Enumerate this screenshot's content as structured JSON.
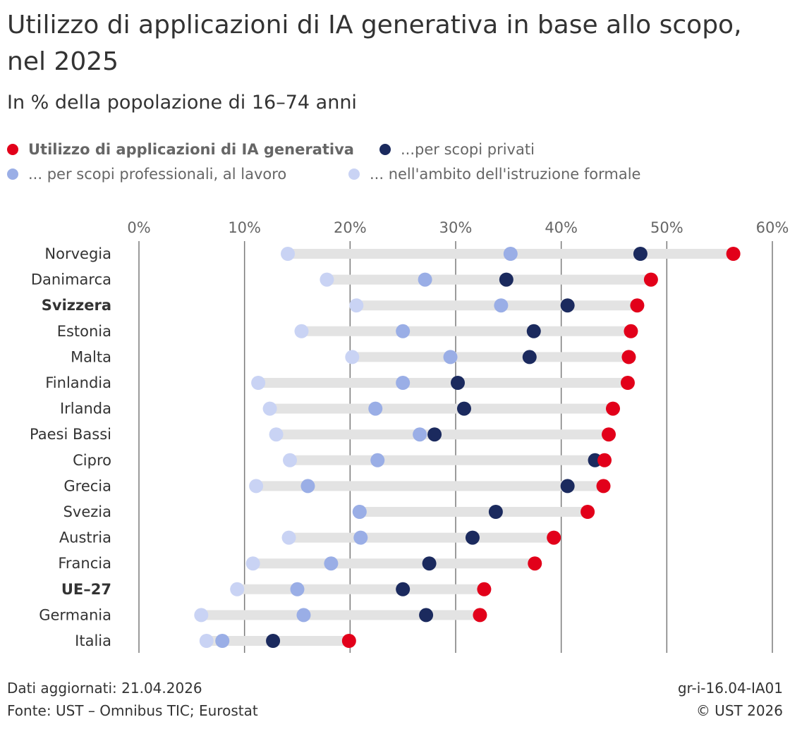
{
  "header": {
    "title": "Utilizzo di applicazioni di IA generativa in base allo scopo, nel 2025",
    "subtitle": "In % della popolazione di 16–74 anni"
  },
  "legend": [
    {
      "label": "Utilizzo di applicazioni di IA generativa",
      "color": "#e2001a",
      "bold": true
    },
    {
      "label": "...per scopi privati",
      "color": "#1b2a5e",
      "bold": false
    },
    {
      "label": "... per scopi professionali, al lavoro",
      "color": "#9aaee6",
      "bold": false
    },
    {
      "label": "... nell'ambito dell'istruzione formale",
      "color": "#c9d3f4",
      "bold": false
    }
  ],
  "chart_data": {
    "type": "dot-plot",
    "title": "Utilizzo di applicazioni di IA generativa in base allo scopo, nel 2025",
    "subtitle": "In % della popolazione di 16–74 anni",
    "x_axis": {
      "min": 0,
      "max": 60,
      "ticks": [
        "0%",
        "10%",
        "20%",
        "30%",
        "40%",
        "50%",
        "60%"
      ],
      "tick_values": [
        0,
        10,
        20,
        30,
        40,
        50,
        60
      ],
      "position": "top",
      "grid": true
    },
    "categories": [
      "Norvegia",
      "Danimarca",
      "Svizzera",
      "Estonia",
      "Malta",
      "Finlandia",
      "Irlanda",
      "Paesi Bassi",
      "Cipro",
      "Grecia",
      "Svezia",
      "Austria",
      "Francia",
      "UE–27",
      "Germania",
      "Italia"
    ],
    "bold_categories": [
      "Svizzera",
      "UE–27"
    ],
    "series": [
      {
        "name": "Utilizzo di applicazioni di IA generativa",
        "color": "#e2001a",
        "values": [
          56.3,
          48.5,
          47.2,
          46.6,
          46.4,
          46.3,
          44.9,
          44.5,
          44.1,
          44.0,
          42.5,
          39.3,
          37.5,
          32.7,
          32.3,
          19.9
        ]
      },
      {
        "name": "...per scopi privati",
        "color": "#1b2a5e",
        "values": [
          47.5,
          34.8,
          40.6,
          37.4,
          37.0,
          30.2,
          30.8,
          28.0,
          43.2,
          40.6,
          33.8,
          31.6,
          27.5,
          25.0,
          27.2,
          12.7
        ]
      },
      {
        "name": "... per scopi professionali, al lavoro",
        "color": "#9aaee6",
        "values": [
          35.2,
          27.1,
          34.3,
          25.0,
          29.5,
          25.0,
          22.4,
          26.6,
          22.6,
          16.0,
          20.9,
          21.0,
          18.2,
          15.0,
          15.6,
          7.9
        ]
      },
      {
        "name": "... nell'ambito dell'istruzione formale",
        "color": "#c9d3f4",
        "values": [
          14.1,
          17.8,
          20.6,
          15.4,
          20.2,
          11.3,
          12.4,
          13.0,
          14.3,
          11.1,
          20.9,
          14.2,
          10.8,
          9.3,
          5.9,
          6.4
        ]
      }
    ]
  },
  "footer": {
    "updated": "Dati aggiornati: 21.04.2026",
    "source": "Fonte: UST – Omnibus TIC; Eurostat",
    "code": "gr-i-16.04-IA01",
    "copyright": "© UST 2026"
  }
}
